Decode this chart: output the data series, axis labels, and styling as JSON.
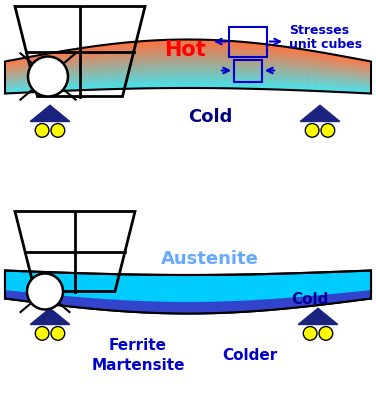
{
  "fig_width": 3.76,
  "fig_height": 4.1,
  "dpi": 100,
  "bg_color": "#ffffff",
  "top_panel": {
    "hot_color": "#ff4400",
    "cold_color": "#00ddee",
    "hot_label": "Hot",
    "hot_label_color": "#ff0000",
    "cold_label": "Cold",
    "cold_label_color": "#000080"
  },
  "bottom_panel": {
    "top_color": "#00ccff",
    "bottom_color": "#3333cc",
    "austenite_label": "Austenite",
    "austenite_color": "#66aaff",
    "cold_label": "Cold",
    "cold_label_color": "#000099",
    "ferrite_label": "Ferrite",
    "ferrite_color": "#0000cc",
    "martensite_label": "Martensite",
    "martensite_color": "#0000cc",
    "colder_label": "Colder",
    "colder_color": "#0000cc"
  },
  "stress_label": "Stresses\nunit cubes",
  "stress_label_color": "#0000cc",
  "stress_arrow_color": "#0000cc",
  "triangle_color": "#1a237e",
  "roller_color": "#ffff00"
}
